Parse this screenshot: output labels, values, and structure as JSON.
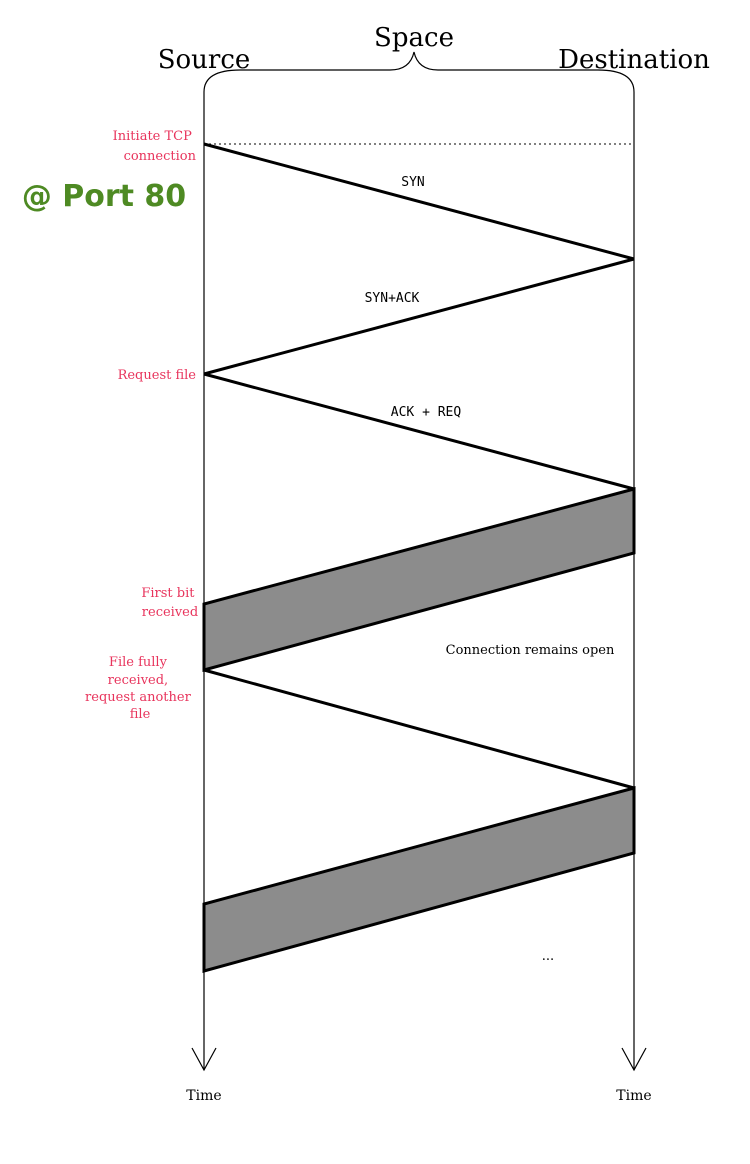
{
  "header": {
    "space_label": "Space",
    "source_label": "Source",
    "destination_label": "Destination"
  },
  "timeline": {
    "source_time_label": "Time",
    "destination_time_label": "Time"
  },
  "annotations": {
    "initiate": [
      "Initiate TCP",
      "connection"
    ],
    "port": "@ Port 80",
    "request_file": "Request file",
    "first_bit": [
      "First bit",
      "received"
    ],
    "file_fully": [
      "File fully",
      "received,",
      "request another",
      "file"
    ]
  },
  "messages": {
    "syn": "SYN",
    "syn_ack": "SYN+ACK",
    "ack_req": "ACK + REQ",
    "connection_open": "Connection remains open",
    "ellipsis": "..."
  },
  "colors": {
    "annotation": "#e8345c",
    "port": "#4e8a23",
    "transfer_fill": "#8c8c8c",
    "line": "#000000"
  }
}
